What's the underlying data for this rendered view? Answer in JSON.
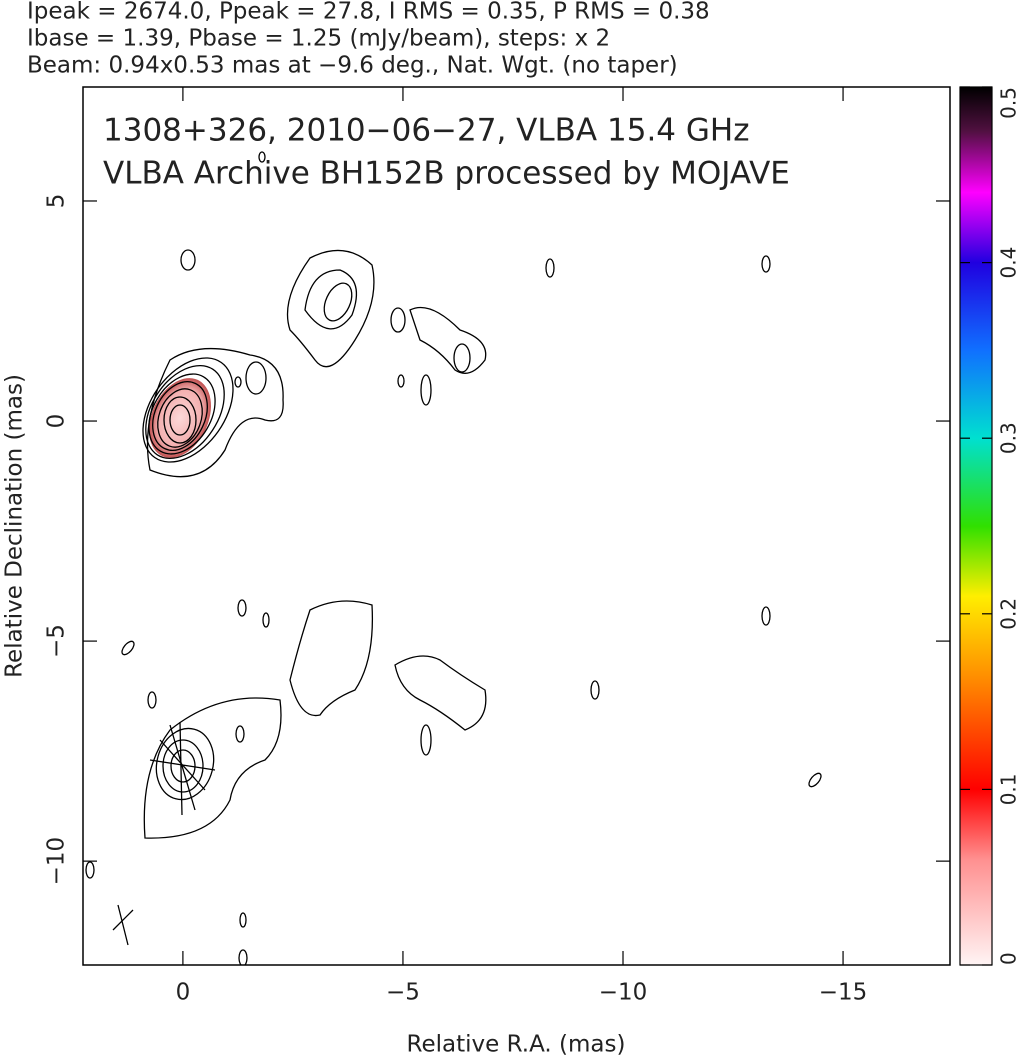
{
  "chart_data": {
    "type": "contour",
    "title_lines": [
      "Ipeak = 2674.0, Ppeak = 27.8, I RMS = 0.35, P RMS = 0.38",
      "Ibase = 1.39, Pbase = 1.25 (mJy/beam), steps: x 2",
      "Beam: 0.94x0.53 mas at −9.6 deg., Nat. Wgt. (no taper)"
    ],
    "annotations": [
      "1308+326, 2010−06−27, VLBA 15.4 GHz",
      "VLBA Archive BH152B processed by MOJAVE"
    ],
    "xlabel": "Relative R.A. (mas)",
    "ylabel": "Relative Declination (mas)",
    "xlim": [
      2.27,
      -17.43
    ],
    "xticks": [
      0,
      {
        "value": -5,
        "label": "−5"
      },
      {
        "value": -10,
        "label": "−10"
      },
      {
        "value": -15,
        "label": "−15"
      }
    ],
    "ylim": [
      -12.36,
      7.59
    ],
    "yticks": [
      5,
      0,
      {
        "value": -5,
        "label": "−5"
      },
      {
        "value": -10,
        "label": "−10"
      }
    ],
    "clim": [
      0,
      0.5
    ],
    "cticks": [
      0,
      0.1,
      0.2,
      0.3,
      0.4,
      0.5
    ]
  }
}
